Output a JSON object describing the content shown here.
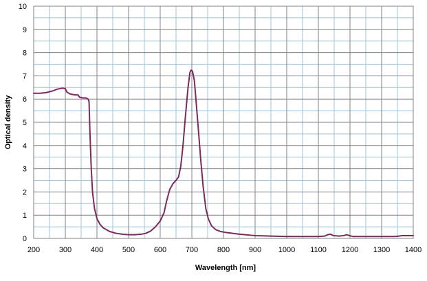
{
  "chart_data": {
    "type": "line",
    "title": "",
    "xlabel": "Wavelength [nm]",
    "ylabel": "Optical density",
    "xlim": [
      200,
      1400
    ],
    "ylim": [
      0,
      10
    ],
    "x_major_ticks": [
      200,
      300,
      400,
      500,
      600,
      700,
      800,
      900,
      1000,
      1100,
      1200,
      1300,
      1400
    ],
    "x_minor_step": 50,
    "y_major_ticks": [
      0,
      1,
      2,
      3,
      4,
      5,
      6,
      7,
      8,
      9,
      10
    ],
    "y_minor_step": 0.5,
    "grid": true,
    "legend": "none",
    "colors": {
      "line": "#7b2a5c",
      "major_grid": "#808080",
      "minor_grid": "#9fc3d9",
      "frame": "#808080"
    },
    "series": [
      {
        "points": [
          [
            200,
            6.25
          ],
          [
            220,
            6.25
          ],
          [
            240,
            6.28
          ],
          [
            260,
            6.35
          ],
          [
            275,
            6.43
          ],
          [
            290,
            6.47
          ],
          [
            300,
            6.45
          ],
          [
            305,
            6.3
          ],
          [
            315,
            6.22
          ],
          [
            330,
            6.18
          ],
          [
            340,
            6.18
          ],
          [
            345,
            6.08
          ],
          [
            355,
            6.05
          ],
          [
            365,
            6.05
          ],
          [
            372,
            6.0
          ],
          [
            375,
            5.9
          ],
          [
            378,
            4.5
          ],
          [
            382,
            3.0
          ],
          [
            386,
            2.0
          ],
          [
            392,
            1.3
          ],
          [
            400,
            0.85
          ],
          [
            410,
            0.6
          ],
          [
            420,
            0.45
          ],
          [
            440,
            0.3
          ],
          [
            460,
            0.22
          ],
          [
            480,
            0.18
          ],
          [
            500,
            0.16
          ],
          [
            520,
            0.16
          ],
          [
            540,
            0.18
          ],
          [
            555,
            0.22
          ],
          [
            570,
            0.32
          ],
          [
            585,
            0.5
          ],
          [
            600,
            0.75
          ],
          [
            612,
            1.1
          ],
          [
            620,
            1.6
          ],
          [
            630,
            2.1
          ],
          [
            640,
            2.35
          ],
          [
            650,
            2.5
          ],
          [
            658,
            2.65
          ],
          [
            665,
            3.1
          ],
          [
            672,
            4.0
          ],
          [
            680,
            5.3
          ],
          [
            688,
            6.5
          ],
          [
            694,
            7.15
          ],
          [
            698,
            7.25
          ],
          [
            702,
            7.2
          ],
          [
            708,
            6.8
          ],
          [
            714,
            5.8
          ],
          [
            720,
            4.8
          ],
          [
            728,
            3.4
          ],
          [
            736,
            2.2
          ],
          [
            744,
            1.3
          ],
          [
            752,
            0.85
          ],
          [
            762,
            0.55
          ],
          [
            775,
            0.38
          ],
          [
            790,
            0.3
          ],
          [
            810,
            0.25
          ],
          [
            850,
            0.18
          ],
          [
            900,
            0.12
          ],
          [
            950,
            0.1
          ],
          [
            1000,
            0.08
          ],
          [
            1050,
            0.08
          ],
          [
            1100,
            0.08
          ],
          [
            1120,
            0.1
          ],
          [
            1130,
            0.16
          ],
          [
            1138,
            0.18
          ],
          [
            1148,
            0.12
          ],
          [
            1165,
            0.1
          ],
          [
            1180,
            0.12
          ],
          [
            1190,
            0.16
          ],
          [
            1198,
            0.12
          ],
          [
            1210,
            0.08
          ],
          [
            1250,
            0.08
          ],
          [
            1300,
            0.08
          ],
          [
            1340,
            0.08
          ],
          [
            1355,
            0.1
          ],
          [
            1365,
            0.12
          ],
          [
            1400,
            0.12
          ]
        ]
      }
    ]
  }
}
